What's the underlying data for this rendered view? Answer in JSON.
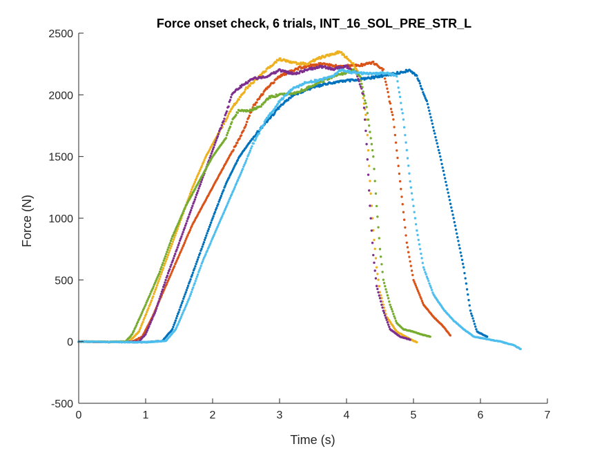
{
  "chart_data": {
    "type": "scatter",
    "title": "Force onset check, 6 trials, INT_16_SOL_PRE_STR_L",
    "xlabel": "Time (s)",
    "ylabel": "Force (N)",
    "xlim": [
      0,
      7
    ],
    "ylim": [
      -500,
      2500
    ],
    "xticks": [
      0,
      1,
      2,
      3,
      4,
      5,
      6,
      7
    ],
    "yticks": [
      -500,
      0,
      500,
      1000,
      1500,
      2000,
      2500
    ],
    "grid": false,
    "legend": "none",
    "series": [
      {
        "color": "#0072BD",
        "points": [
          [
            0,
            0
          ],
          [
            0.5,
            -3
          ],
          [
            1.0,
            -5
          ],
          [
            1.25,
            5
          ],
          [
            1.4,
            100
          ],
          [
            1.6,
            400
          ],
          [
            1.8,
            700
          ],
          [
            2.0,
            1000
          ],
          [
            2.2,
            1280
          ],
          [
            2.4,
            1500
          ],
          [
            2.6,
            1650
          ],
          [
            2.8,
            1780
          ],
          [
            3.0,
            1900
          ],
          [
            3.2,
            2000
          ],
          [
            3.5,
            2060
          ],
          [
            3.8,
            2100
          ],
          [
            4.1,
            2120
          ],
          [
            4.4,
            2140
          ],
          [
            4.7,
            2170
          ],
          [
            4.95,
            2200
          ],
          [
            5.05,
            2150
          ],
          [
            5.2,
            1950
          ],
          [
            5.4,
            1500
          ],
          [
            5.6,
            1000
          ],
          [
            5.75,
            600
          ],
          [
            5.85,
            250
          ],
          [
            5.95,
            80
          ],
          [
            6.1,
            40
          ]
        ]
      },
      {
        "color": "#D95319",
        "points": [
          [
            0,
            0
          ],
          [
            0.5,
            -3
          ],
          [
            0.8,
            0
          ],
          [
            0.95,
            40
          ],
          [
            1.1,
            200
          ],
          [
            1.3,
            450
          ],
          [
            1.5,
            700
          ],
          [
            1.7,
            950
          ],
          [
            1.9,
            1150
          ],
          [
            2.1,
            1350
          ],
          [
            2.3,
            1550
          ],
          [
            2.45,
            1700
          ],
          [
            2.6,
            1900
          ],
          [
            2.8,
            2050
          ],
          [
            3.0,
            2150
          ],
          [
            3.3,
            2220
          ],
          [
            3.6,
            2250
          ],
          [
            3.9,
            2230
          ],
          [
            4.2,
            2240
          ],
          [
            4.4,
            2260
          ],
          [
            4.55,
            2200
          ],
          [
            4.7,
            1800
          ],
          [
            4.8,
            1300
          ],
          [
            4.9,
            800
          ],
          [
            5.0,
            500
          ],
          [
            5.15,
            300
          ],
          [
            5.3,
            200
          ],
          [
            5.45,
            120
          ],
          [
            5.55,
            50
          ]
        ]
      },
      {
        "color": "#EDB120",
        "points": [
          [
            0,
            0
          ],
          [
            0.5,
            -2
          ],
          [
            0.75,
            0
          ],
          [
            0.9,
            80
          ],
          [
            1.1,
            350
          ],
          [
            1.3,
            650
          ],
          [
            1.5,
            950
          ],
          [
            1.7,
            1250
          ],
          [
            1.9,
            1500
          ],
          [
            2.1,
            1700
          ],
          [
            2.3,
            1900
          ],
          [
            2.5,
            2050
          ],
          [
            2.7,
            2150
          ],
          [
            2.9,
            2250
          ],
          [
            3.0,
            2290
          ],
          [
            3.2,
            2260
          ],
          [
            3.4,
            2250
          ],
          [
            3.6,
            2300
          ],
          [
            3.8,
            2330
          ],
          [
            3.9,
            2350
          ],
          [
            4.0,
            2300
          ],
          [
            4.1,
            2250
          ],
          [
            4.2,
            2150
          ],
          [
            4.3,
            1800
          ],
          [
            4.35,
            1300
          ],
          [
            4.4,
            900
          ],
          [
            4.45,
            600
          ],
          [
            4.5,
            400
          ],
          [
            4.6,
            200
          ],
          [
            4.75,
            80
          ],
          [
            4.95,
            20
          ],
          [
            5.05,
            -5
          ]
        ]
      },
      {
        "color": "#7E2F8E",
        "points": [
          [
            0,
            0
          ],
          [
            0.5,
            -2
          ],
          [
            0.9,
            0
          ],
          [
            1.0,
            60
          ],
          [
            1.15,
            250
          ],
          [
            1.3,
            500
          ],
          [
            1.5,
            800
          ],
          [
            1.7,
            1100
          ],
          [
            1.9,
            1400
          ],
          [
            2.1,
            1700
          ],
          [
            2.2,
            1850
          ],
          [
            2.3,
            2020
          ],
          [
            2.45,
            2080
          ],
          [
            2.6,
            2130
          ],
          [
            2.8,
            2150
          ],
          [
            3.0,
            2200
          ],
          [
            3.2,
            2170
          ],
          [
            3.4,
            2200
          ],
          [
            3.6,
            2230
          ],
          [
            3.8,
            2210
          ],
          [
            4.0,
            2230
          ],
          [
            4.15,
            2180
          ],
          [
            4.25,
            2000
          ],
          [
            4.3,
            1600
          ],
          [
            4.35,
            1100
          ],
          [
            4.4,
            700
          ],
          [
            4.45,
            450
          ],
          [
            4.55,
            250
          ],
          [
            4.65,
            100
          ],
          [
            4.8,
            40
          ],
          [
            4.95,
            15
          ]
        ]
      },
      {
        "color": "#77AC30",
        "points": [
          [
            0,
            0
          ],
          [
            0.5,
            -2
          ],
          [
            0.7,
            0
          ],
          [
            0.8,
            60
          ],
          [
            1.0,
            300
          ],
          [
            1.2,
            550
          ],
          [
            1.4,
            850
          ],
          [
            1.6,
            1100
          ],
          [
            1.8,
            1300
          ],
          [
            2.0,
            1500
          ],
          [
            2.2,
            1650
          ],
          [
            2.3,
            1800
          ],
          [
            2.4,
            1880
          ],
          [
            2.55,
            1870
          ],
          [
            2.7,
            1900
          ],
          [
            2.85,
            1980
          ],
          [
            3.0,
            2000
          ],
          [
            3.2,
            2010
          ],
          [
            3.4,
            2050
          ],
          [
            3.6,
            2100
          ],
          [
            3.8,
            2150
          ],
          [
            4.0,
            2180
          ],
          [
            4.1,
            2200
          ],
          [
            4.2,
            2150
          ],
          [
            4.3,
            1900
          ],
          [
            4.4,
            1500
          ],
          [
            4.45,
            1100
          ],
          [
            4.5,
            750
          ],
          [
            4.55,
            500
          ],
          [
            4.65,
            300
          ],
          [
            4.75,
            150
          ],
          [
            4.85,
            100
          ],
          [
            5.0,
            80
          ],
          [
            5.1,
            60
          ],
          [
            5.25,
            40
          ]
        ]
      },
      {
        "color": "#4DBEEE",
        "points": [
          [
            0,
            0
          ],
          [
            0.5,
            -3
          ],
          [
            1.0,
            -5
          ],
          [
            1.3,
            5
          ],
          [
            1.45,
            100
          ],
          [
            1.65,
            350
          ],
          [
            1.85,
            650
          ],
          [
            2.05,
            900
          ],
          [
            2.25,
            1150
          ],
          [
            2.45,
            1400
          ],
          [
            2.6,
            1600
          ],
          [
            2.8,
            1800
          ],
          [
            3.0,
            1950
          ],
          [
            3.2,
            2050
          ],
          [
            3.4,
            2100
          ],
          [
            3.6,
            2120
          ],
          [
            3.8,
            2150
          ],
          [
            3.9,
            2200
          ],
          [
            4.1,
            2180
          ],
          [
            4.4,
            2170
          ],
          [
            4.6,
            2180
          ],
          [
            4.75,
            2150
          ],
          [
            4.85,
            1800
          ],
          [
            4.95,
            1300
          ],
          [
            5.05,
            900
          ],
          [
            5.15,
            600
          ],
          [
            5.3,
            380
          ],
          [
            5.45,
            260
          ],
          [
            5.6,
            170
          ],
          [
            5.75,
            100
          ],
          [
            5.9,
            40
          ],
          [
            6.1,
            20
          ],
          [
            6.3,
            0
          ],
          [
            6.5,
            -30
          ],
          [
            6.6,
            -60
          ]
        ]
      }
    ]
  }
}
